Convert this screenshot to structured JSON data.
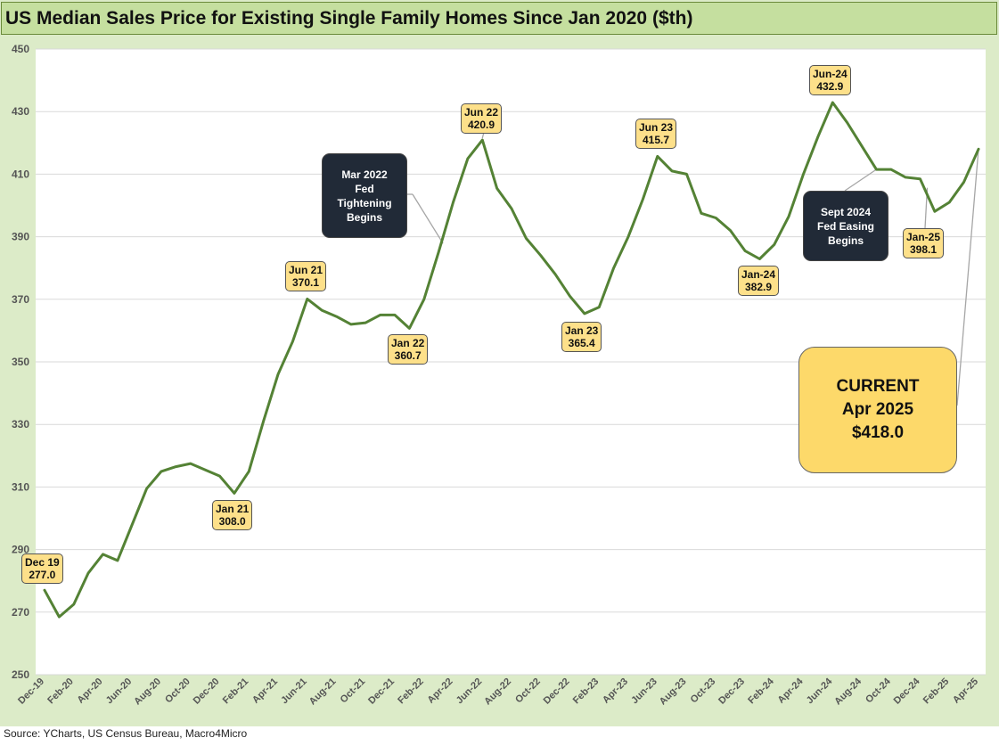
{
  "title": "US Median Sales Price for Existing Single Family Homes Since Jan 2020 ($th)",
  "source": "Source: YCharts, US Census Bureau, Macro4Micro",
  "colors": {
    "line": "#548235",
    "frame": "#dcebc8",
    "title_bg": "#c5df9f",
    "label_bg": "#fde08a",
    "dark_box": "#212a37"
  },
  "chart_data": {
    "type": "line",
    "title": "US Median Sales Price for Existing Single Family Homes Since Jan 2020 ($th)",
    "ylim": [
      250,
      450
    ],
    "y_ticks": [
      250,
      270,
      290,
      310,
      330,
      350,
      370,
      390,
      410,
      430,
      450
    ],
    "grid": true,
    "x_tick_labels": [
      "Dec-19",
      "Feb-20",
      "Apr-20",
      "Jun-20",
      "Aug-20",
      "Oct-20",
      "Dec-20",
      "Feb-21",
      "Apr-21",
      "Jun-21",
      "Aug-21",
      "Oct-21",
      "Dec-21",
      "Feb-22",
      "Apr-22",
      "Jun-22",
      "Aug-22",
      "Oct-22",
      "Dec-22",
      "Feb-23",
      "Apr-23",
      "Jun-23",
      "Aug-23",
      "Oct-23",
      "Dec-23",
      "Feb-24",
      "Apr-24",
      "Jun-24",
      "Aug-24",
      "Oct-24",
      "Dec-24",
      "Feb-25",
      "Apr-25"
    ],
    "x": [
      "Dec-19",
      "Jan-20",
      "Feb-20",
      "Mar-20",
      "Apr-20",
      "May-20",
      "Jun-20",
      "Jul-20",
      "Aug-20",
      "Sep-20",
      "Oct-20",
      "Nov-20",
      "Dec-20",
      "Jan-21",
      "Feb-21",
      "Mar-21",
      "Apr-21",
      "May-21",
      "Jun-21",
      "Jul-21",
      "Aug-21",
      "Sep-21",
      "Oct-21",
      "Nov-21",
      "Dec-21",
      "Jan-22",
      "Feb-22",
      "Mar-22",
      "Apr-22",
      "May-22",
      "Jun-22",
      "Jul-22",
      "Aug-22",
      "Sep-22",
      "Oct-22",
      "Nov-22",
      "Dec-22",
      "Jan-23",
      "Feb-23",
      "Mar-23",
      "Apr-23",
      "May-23",
      "Jun-23",
      "Jul-23",
      "Aug-23",
      "Sep-23",
      "Oct-23",
      "Nov-23",
      "Dec-23",
      "Jan-24",
      "Feb-24",
      "Mar-24",
      "Apr-24",
      "May-24",
      "Jun-24",
      "Jul-24",
      "Aug-24",
      "Sep-24",
      "Oct-24",
      "Nov-24",
      "Dec-24",
      "Jan-25",
      "Feb-25",
      "Mar-25",
      "Apr-25"
    ],
    "series": [
      {
        "values": [
          277.0,
          268.5,
          272.5,
          282.5,
          288.5,
          286.5,
          298.0,
          309.5,
          315.0,
          316.5,
          317.5,
          315.5,
          313.5,
          308.0,
          315.0,
          331.0,
          346.0,
          356.5,
          370.1,
          366.5,
          364.5,
          362.0,
          362.5,
          365.0,
          365.0,
          360.7,
          370.0,
          385.0,
          401.0,
          415.0,
          420.9,
          405.5,
          399.0,
          389.5,
          384.0,
          378.0,
          371.0,
          365.4,
          367.5,
          380.0,
          390.0,
          402.0,
          415.7,
          411.0,
          410.0,
          397.5,
          396.0,
          392.0,
          385.5,
          382.9,
          387.5,
          396.5,
          410.0,
          422.0,
          432.9,
          426.5,
          419.0,
          411.5,
          411.5,
          409.0,
          408.5,
          398.1,
          401.0,
          407.5,
          418.0
        ]
      }
    ],
    "annotations": [
      {
        "id": "dec19",
        "text": [
          "Dec 19",
          "277.0"
        ],
        "x": "Dec-19"
      },
      {
        "id": "jan21",
        "text": [
          "Jan 21",
          "308.0"
        ],
        "x": "Jan-21"
      },
      {
        "id": "jun21",
        "text": [
          "Jun 21",
          "370.1"
        ],
        "x": "Jun-21"
      },
      {
        "id": "jan22",
        "text": [
          "Jan 22",
          "360.7"
        ],
        "x": "Jan-22"
      },
      {
        "id": "jun22",
        "text": [
          "Jun 22",
          "420.9"
        ],
        "x": "Jun-22"
      },
      {
        "id": "jan23",
        "text": [
          "Jan 23",
          "365.4"
        ],
        "x": "Jan-23"
      },
      {
        "id": "jun23",
        "text": [
          "Jun 23",
          "415.7"
        ],
        "x": "Jun-23"
      },
      {
        "id": "jan24",
        "text": [
          "Jan-24",
          "382.9"
        ],
        "x": "Jan-24"
      },
      {
        "id": "jun24",
        "text": [
          "Jun-24",
          "432.9"
        ],
        "x": "Jun-24"
      },
      {
        "id": "jan25",
        "text": [
          "Jan-25",
          "398.1"
        ],
        "x": "Jan-25"
      }
    ],
    "callouts": {
      "fed_tightening": [
        "Mar 2022",
        "Fed",
        "Tightening",
        "Begins"
      ],
      "fed_easing": [
        "Sept 2024",
        "Fed Easing",
        "Begins"
      ],
      "current": [
        "CURRENT",
        "Apr 2025",
        "$418.0"
      ]
    }
  }
}
